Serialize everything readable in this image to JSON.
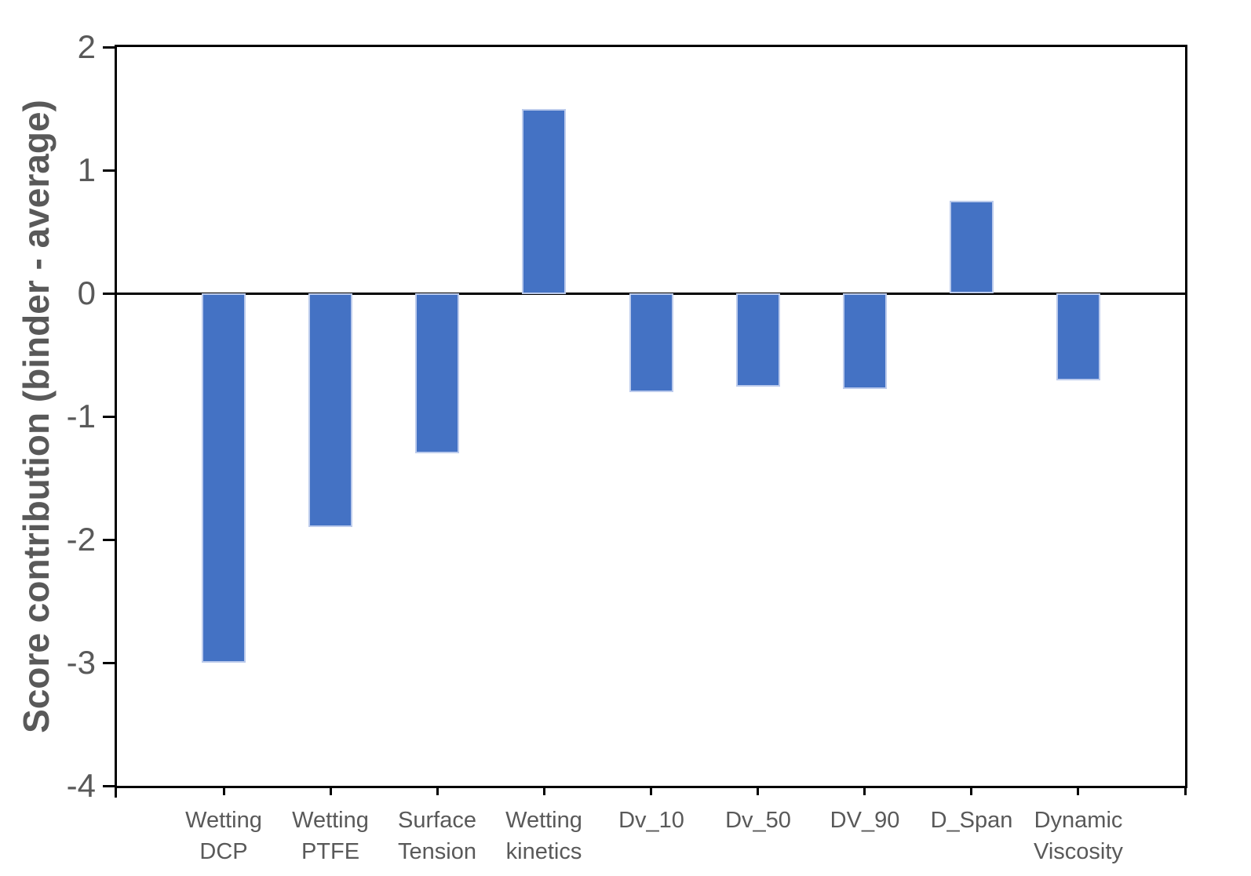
{
  "chart_data": {
    "type": "bar",
    "title": "",
    "xlabel": "",
    "ylabel": "Score contribution (binder - average)",
    "categories": [
      "Wetting DCP",
      "Wetting PTFE",
      "Surface Tension",
      "Wetting kinetics",
      "Dv_10",
      "Dv_50",
      "DV_90",
      "D_Span",
      "Dynamic Viscosity"
    ],
    "x_tick_display": [
      "Wetting\nDCP",
      "Wetting\nPTFE",
      "Surface\nTension",
      "Wetting\nkinetics",
      "Dv_10",
      "Dv_50",
      "DV_90",
      "D_Span",
      "Dynamic\nViscosity"
    ],
    "values": [
      -3.0,
      -1.9,
      -1.3,
      1.5,
      -0.8,
      -0.76,
      -0.78,
      0.75,
      -0.71
    ],
    "ylim": [
      -4,
      2
    ],
    "y_ticks": [
      2,
      1,
      0,
      -1,
      -2,
      -3,
      -4
    ],
    "grid": false,
    "legend": false,
    "colors": {
      "bar_fill": "#4472C4",
      "bar_border": "#BCCBEC",
      "axis": "#000000",
      "label_text": "#595959"
    }
  }
}
